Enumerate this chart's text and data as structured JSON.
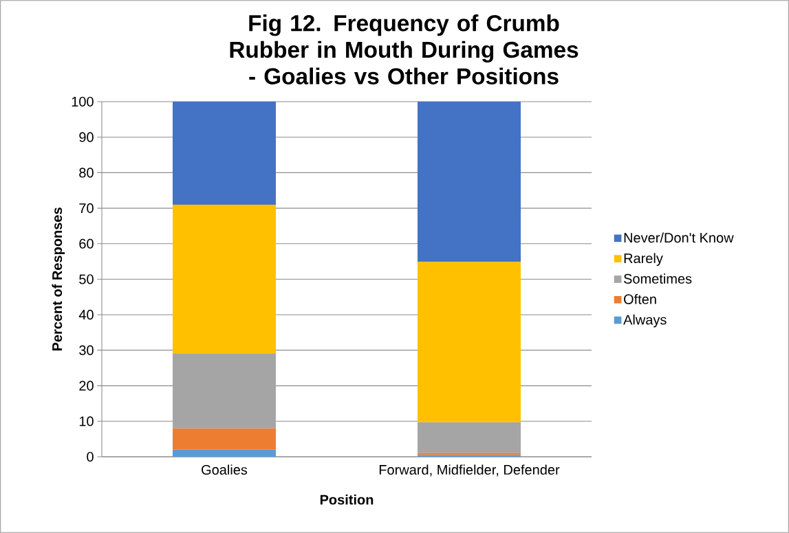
{
  "chart_data": {
    "type": "bar",
    "stacked": true,
    "title": "Fig 12. Frequency of Crumb Rubber in Mouth During Games - Goalies vs Other Positions",
    "xlabel": "Position",
    "ylabel": "Percent of Responses",
    "categories": [
      "Goalies",
      "Forward, Midfielder, Defender"
    ],
    "series": [
      {
        "name": "Always",
        "color": "#5b9bd5",
        "values": [
          2,
          0.5
        ]
      },
      {
        "name": "Often",
        "color": "#ed7d31",
        "values": [
          6,
          0.5
        ]
      },
      {
        "name": "Sometimes",
        "color": "#a5a5a5",
        "values": [
          21,
          8.7
        ]
      },
      {
        "name": "Rarely",
        "color": "#ffc000",
        "values": [
          42,
          45.2
        ]
      },
      {
        "name": "Never/Don't Know",
        "color": "#4472c4",
        "values": [
          29,
          45.1
        ]
      }
    ],
    "ylim": [
      0,
      100
    ],
    "yticks": [
      0,
      10,
      20,
      30,
      40,
      50,
      60,
      70,
      80,
      90,
      100
    ],
    "grid": "y",
    "legend": "right"
  }
}
